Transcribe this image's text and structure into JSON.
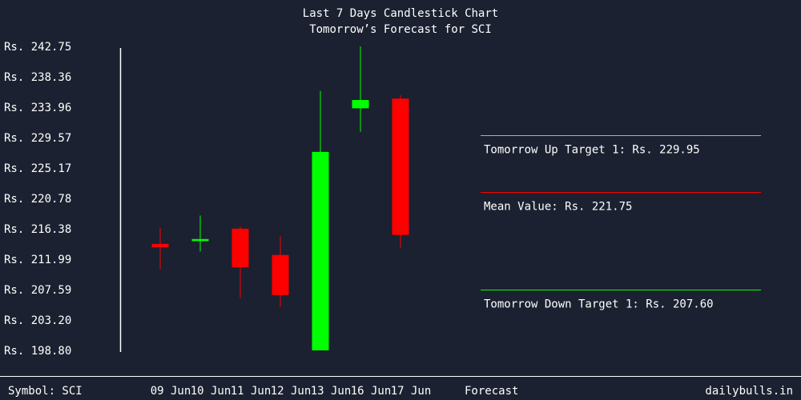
{
  "chart_data": {
    "type": "candlestick",
    "title": "Last 7 Days Candlestick Chart",
    "subtitle": "Tomorrow’s Forecast for SCI",
    "y_ticks": [
      "Rs. 242.75",
      "Rs. 238.36",
      "Rs. 233.96",
      "Rs. 229.57",
      "Rs. 225.17",
      "Rs. 220.78",
      "Rs. 216.38",
      "Rs. 211.99",
      "Rs. 207.59",
      "Rs. 203.20",
      "Rs. 198.80"
    ],
    "ylim": [
      198.8,
      242.75
    ],
    "categories": [
      "09 Jun",
      "10 Jun",
      "11 Jun",
      "12 Jun",
      "13 Jun",
      "16 Jun",
      "17 Jun"
    ],
    "candles": [
      {
        "date": "09 Jun",
        "open": 214.2,
        "high": 216.5,
        "low": 210.5,
        "close": 213.7,
        "color": "#ff0000"
      },
      {
        "date": "10 Jun",
        "open": 214.6,
        "high": 218.3,
        "low": 213.1,
        "close": 214.9,
        "color": "#00ff00"
      },
      {
        "date": "11 Jun",
        "open": 216.4,
        "high": 216.7,
        "low": 206.4,
        "close": 210.8,
        "color": "#ff0000"
      },
      {
        "date": "12 Jun",
        "open": 212.6,
        "high": 215.3,
        "low": 205.1,
        "close": 206.8,
        "color": "#ff0000"
      },
      {
        "date": "13 Jun",
        "open": 198.8,
        "high": 236.3,
        "low": 198.8,
        "close": 227.5,
        "color": "#00ff00"
      },
      {
        "date": "16 Jun",
        "open": 233.8,
        "high": 242.75,
        "low": 230.4,
        "close": 235.0,
        "color": "#00ff00"
      },
      {
        "date": "17 Jun",
        "open": 235.2,
        "high": 235.7,
        "low": 213.6,
        "close": 215.5,
        "color": "#ff0000"
      }
    ],
    "forecast": {
      "label": "Forecast",
      "up_target": {
        "text": "Tomorrow Up Target 1: Rs. 229.95",
        "value": 229.95,
        "color": "#ffa500"
      },
      "mean": {
        "text": "Mean Value: Rs. 221.75",
        "value": 221.75,
        "color": "#ff0000"
      },
      "down_target": {
        "text": "Tomorrow Down Target 1: Rs. 207.60",
        "value": 207.6,
        "color": "#00ff00"
      }
    }
  },
  "footer": {
    "symbol": "Symbol: SCI",
    "brand": "dailybulls.in"
  },
  "colors": {
    "background": "#1b2130",
    "axis": "#ffffff",
    "text": "#ffffff"
  }
}
